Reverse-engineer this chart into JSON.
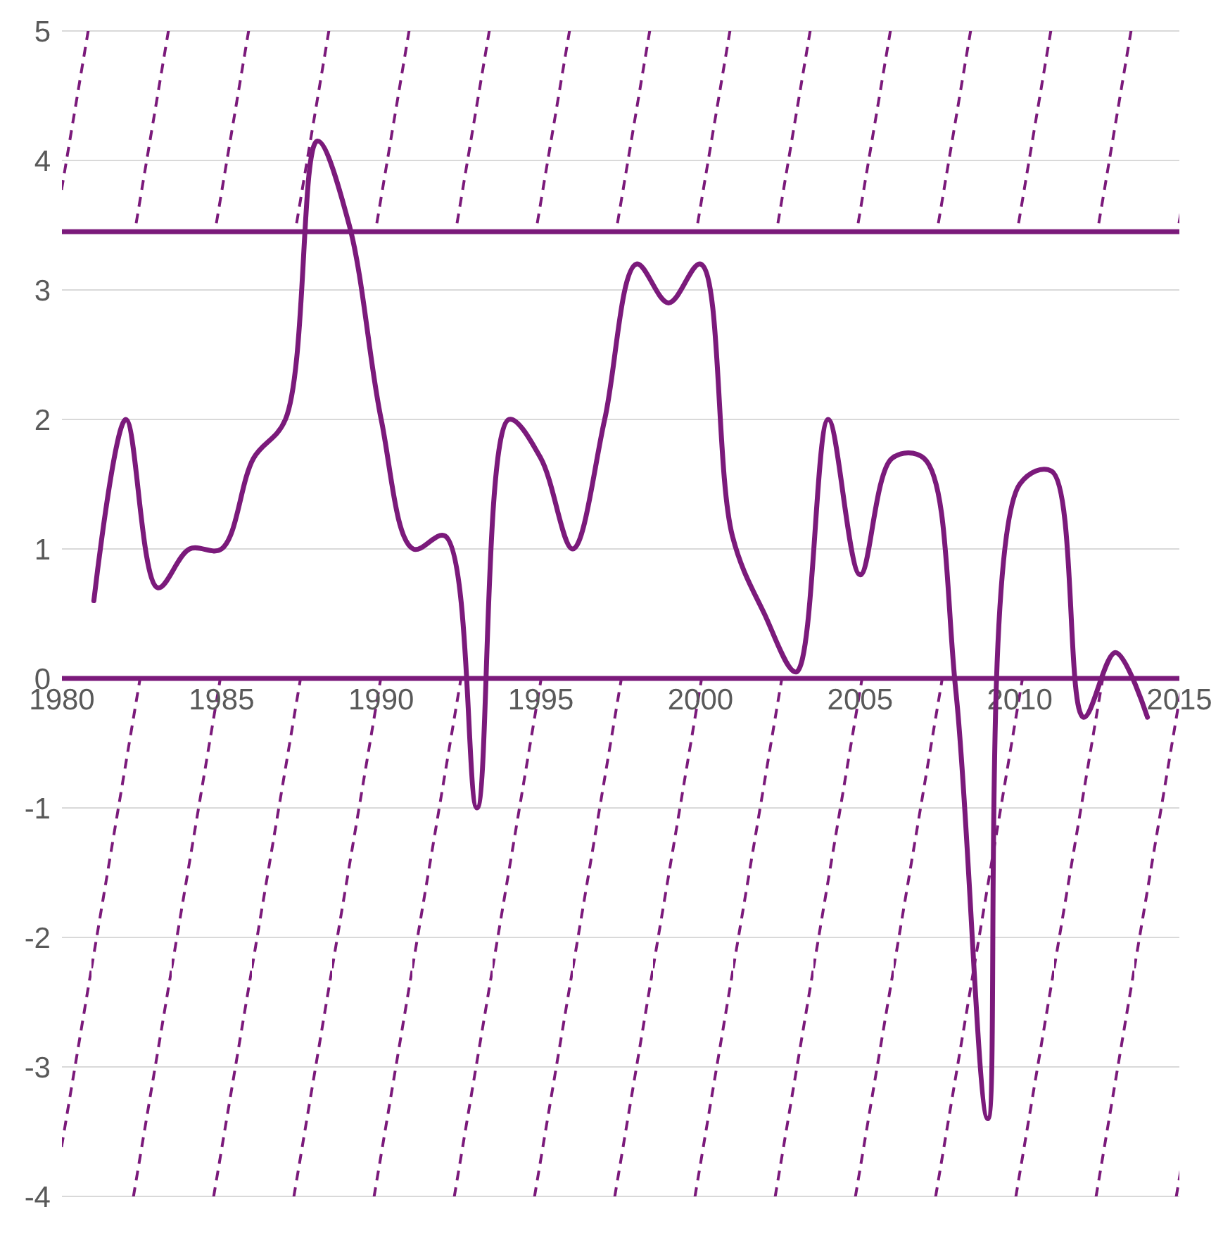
{
  "chart_data": {
    "type": "line",
    "x": [
      1981,
      1982,
      1983,
      1984,
      1985,
      1986,
      1987,
      1988,
      1989,
      1990,
      1991,
      1992,
      1993,
      1994,
      1995,
      1996,
      1997,
      1998,
      1999,
      2000,
      2001,
      2002,
      2003,
      2004,
      2005,
      2006,
      2007,
      2008,
      2009,
      2010,
      2011,
      2012,
      2013,
      2014
    ],
    "series": [
      {
        "color": "#7b1a7b",
        "values": [
          0.6,
          2.0,
          0.7,
          1.0,
          1.0,
          1.7,
          2.0,
          4.15,
          3.5,
          2.0,
          1.0,
          1.1,
          -1.0,
          2.0,
          1.7,
          1.0,
          2.0,
          3.2,
          2.9,
          3.2,
          1.1,
          0.5,
          0.05,
          2.0,
          0.8,
          1.7,
          1.7,
          -0.1,
          -3.4,
          1.5,
          1.6,
          -0.3,
          0.2,
          -0.3
        ]
      }
    ],
    "xlim": [
      1980,
      2015
    ],
    "xticks": [
      1980,
      1985,
      1990,
      1995,
      2000,
      2005,
      2010,
      2015
    ],
    "ylim": [
      -4,
      5
    ],
    "yticks": [
      -4,
      -3,
      -2,
      -1,
      0,
      1,
      2,
      3,
      4,
      5
    ],
    "grid": "y",
    "marker": "none",
    "line_style": "solid",
    "ref_lines": [
      {
        "axis": "y",
        "value": 3.45,
        "color": "#7b1a7b",
        "line_style": "solid"
      },
      {
        "axis": "y",
        "value": 0,
        "color": "#7b1a7b",
        "line_style": "solid"
      }
    ],
    "bands": [
      {
        "axis": "y",
        "from": 3.45,
        "to": 5,
        "color": "#7b1a7b"
      },
      {
        "axis": "y",
        "from": -4,
        "to": 0,
        "color": "#7b1a7b"
      }
    ]
  }
}
